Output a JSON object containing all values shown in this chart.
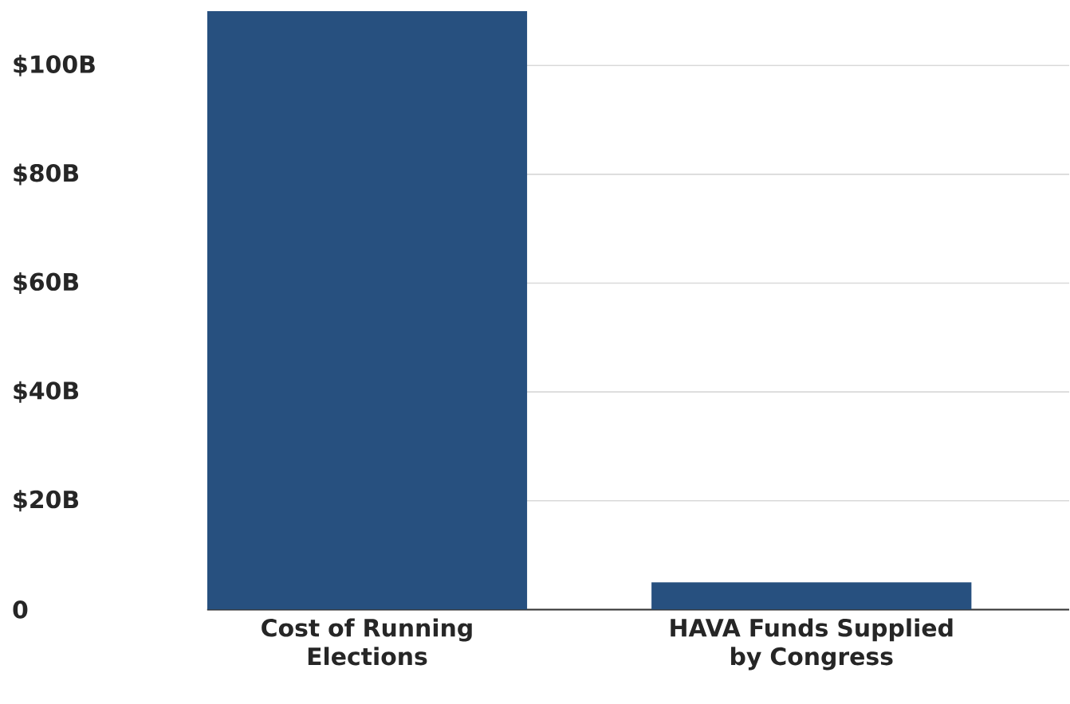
{
  "chart_data": {
    "type": "bar",
    "categories": [
      "Cost of Running Elections",
      "HAVA Funds Supplied by Congress"
    ],
    "values": [
      110,
      5
    ],
    "color": "#27507f",
    "ylim": [
      0,
      110
    ],
    "yticks": [
      0,
      {
        "value": 20,
        "label": "$20B"
      },
      {
        "value": 40,
        "label": "$40B"
      },
      {
        "value": 60,
        "label": "$60B"
      },
      {
        "value": 80,
        "label": "$80B"
      },
      {
        "value": 100,
        "label": "$100B"
      }
    ],
    "grid": "y"
  }
}
